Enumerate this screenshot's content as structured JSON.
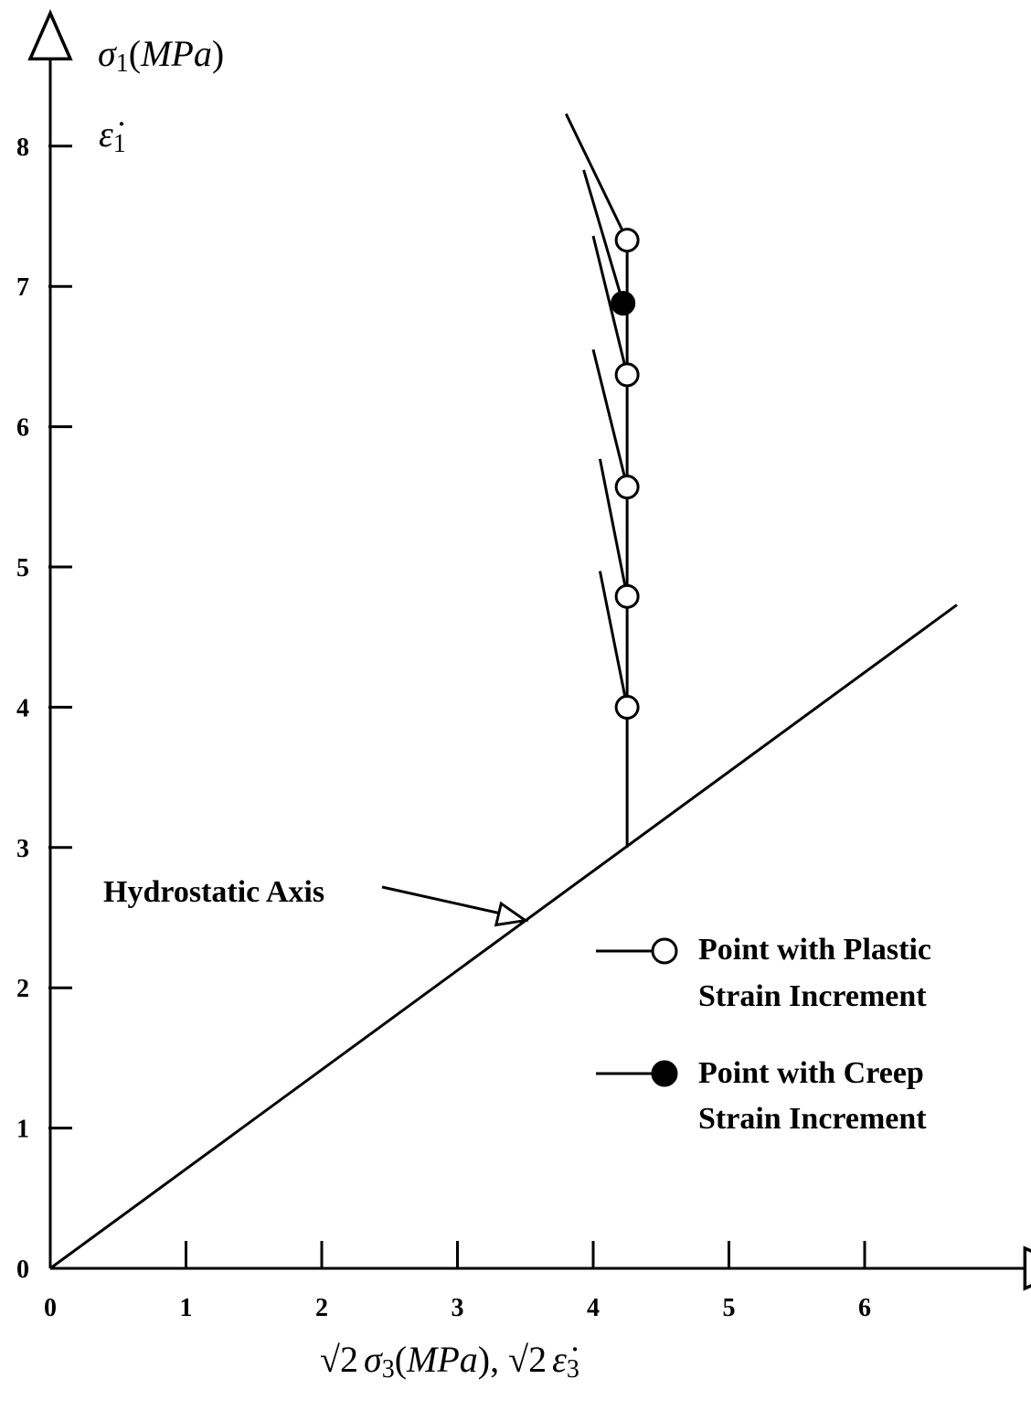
{
  "chart_data": {
    "type": "scatter",
    "x_ticks": [
      "0",
      "1",
      "2",
      "3",
      "4",
      "5",
      "6"
    ],
    "y_ticks": [
      "0",
      "1",
      "2",
      "3",
      "4",
      "5",
      "6",
      "7",
      "8"
    ],
    "xlim": [
      0,
      7.1
    ],
    "ylim": [
      0,
      9.0
    ],
    "ylabel": {
      "sigma": "σ",
      "sub": "1",
      "open": "(",
      "unit": "MPa",
      "close": ")",
      "rate": "ε̇",
      "rate_sub": "1"
    },
    "xlabel": {
      "sqrt": "√",
      "two": "2",
      "sigma": "σ",
      "sub": "3",
      "open": "(",
      "unit": "MPa",
      "close": ")",
      "comma": ",",
      "rate": "ε̇",
      "rate_sub": "3"
    },
    "hydrostatic_axis": {
      "label": "Hydrostatic Axis",
      "x": [
        0,
        6.68
      ],
      "y": [
        0,
        4.73
      ],
      "arrow_target": [
        3.5,
        2.48
      ]
    },
    "stress_path": {
      "x": [
        4.25,
        4.25
      ],
      "y": [
        3.0,
        7.33
      ]
    },
    "points": [
      {
        "x": 4.25,
        "y": 4.0,
        "kind": "plastic",
        "inc_start": [
          4.05,
          4.97
        ]
      },
      {
        "x": 4.25,
        "y": 4.79,
        "kind": "plastic",
        "inc_start": [
          4.05,
          5.77
        ]
      },
      {
        "x": 4.25,
        "y": 5.57,
        "kind": "plastic",
        "inc_start": [
          4.0,
          6.55
        ]
      },
      {
        "x": 4.25,
        "y": 6.37,
        "kind": "plastic",
        "inc_start": [
          4.0,
          7.36
        ]
      },
      {
        "x": 4.22,
        "y": 6.88,
        "kind": "creep",
        "inc_start": [
          3.93,
          7.83
        ]
      },
      {
        "x": 4.25,
        "y": 7.33,
        "kind": "plastic",
        "inc_start": [
          3.8,
          8.23
        ]
      }
    ],
    "legend": [
      {
        "kind": "plastic",
        "line1": "Point with Plastic",
        "line2": "Strain Increment"
      },
      {
        "kind": "creep",
        "line1": "Point with Creep",
        "line2": "Strain Increment"
      }
    ],
    "legend_position": "right",
    "grid": false,
    "colors": {
      "ink": "#000000",
      "open_fill": "#ffffff",
      "closed_fill": "#000000"
    }
  }
}
